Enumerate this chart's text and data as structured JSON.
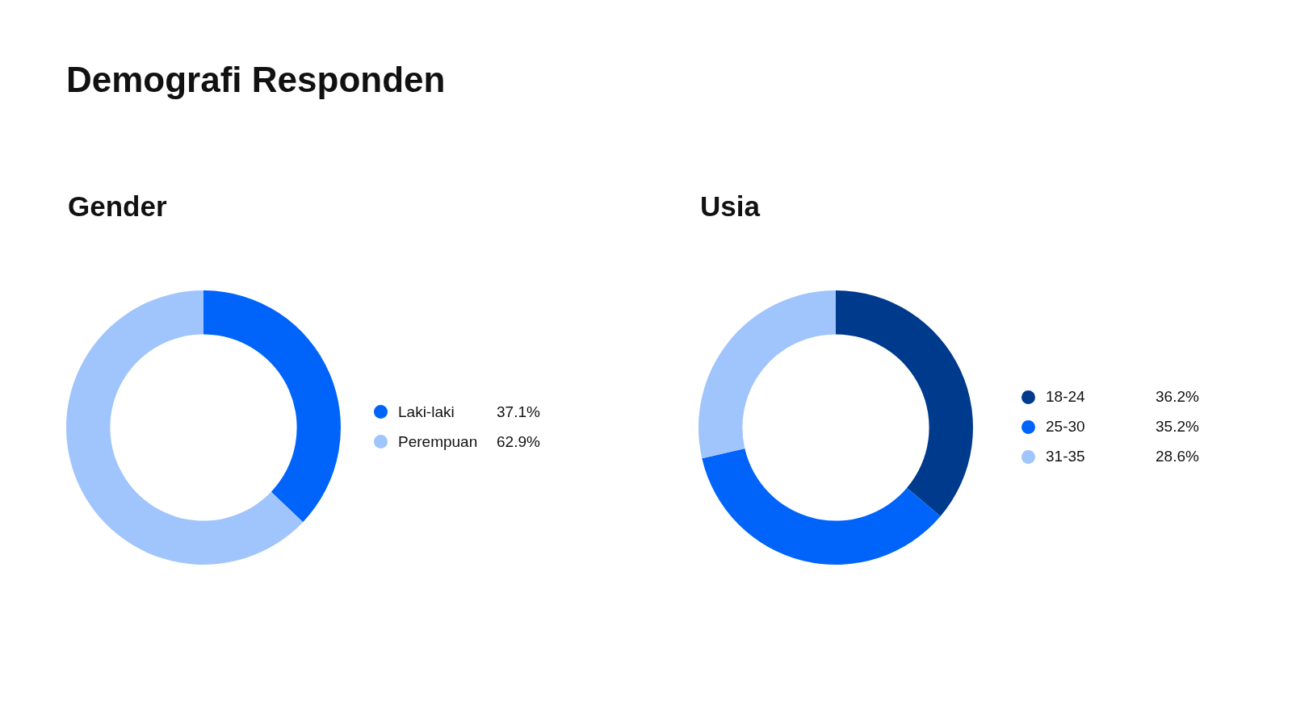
{
  "chart_data": [
    {
      "type": "donut",
      "title": "Demografi Responden",
      "subtitle": "Gender",
      "categories": [
        "Laki-laki",
        "Perempuan"
      ],
      "values": [
        37.1,
        62.9
      ],
      "colors": [
        "#0064fa",
        "#a0c4fc"
      ],
      "value_labels": [
        "37.1%",
        "62.9%"
      ],
      "legend": "right"
    },
    {
      "type": "donut",
      "title": "Usia",
      "categories": [
        "18-24",
        "25-30",
        "31-35"
      ],
      "values": [
        36.2,
        35.2,
        28.6
      ],
      "colors": [
        "#003a8c",
        "#0064fa",
        "#a0c4fc"
      ],
      "value_labels": [
        "36.2%",
        "35.2%",
        "28.6%"
      ],
      "legend": "right"
    }
  ]
}
